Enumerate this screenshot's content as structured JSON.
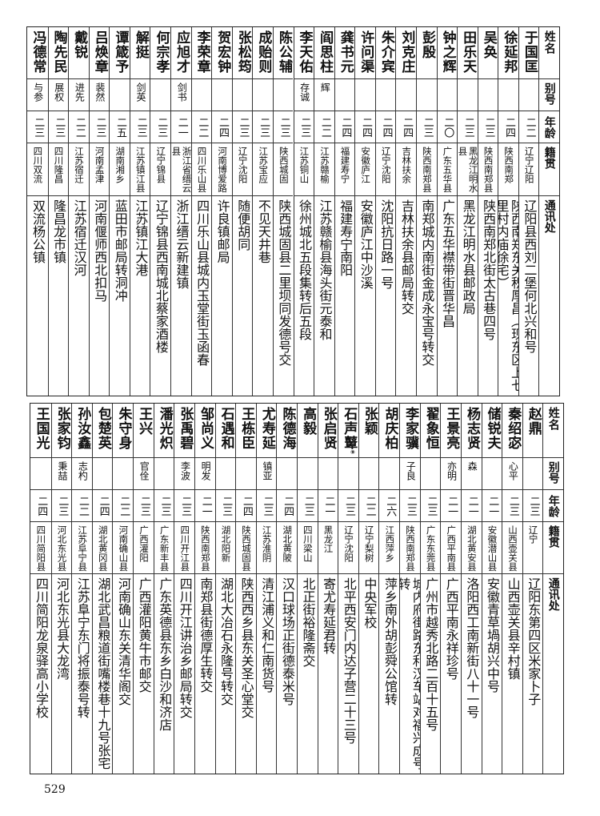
{
  "headers": {
    "name": "姓名",
    "alias": "别号",
    "age": "年龄",
    "origin": "籍贯",
    "address": "通讯处"
  },
  "tables": [
    {
      "rows": [
        {
          "name": "于国匡",
          "alias": "",
          "age": "二二",
          "origin": "辽宁辽阳",
          "address": "辽阳县西刘二堡何北兴和号"
        },
        {
          "name": "徐延邦",
          "alias": "",
          "age": "二四",
          "origin": "陕西南郑",
          "address": "陕西南郑东关积厚昌（现东区上七里村内庙徐宅）"
        },
        {
          "name": "吴奂",
          "alias": "",
          "age": "二三",
          "origin": "陕西南郑县",
          "address": "陕西南郑北街太古巷四号"
        },
        {
          "name": "田乐天",
          "alias": "",
          "age": "二三",
          "origin": "黑龙江明水县",
          "address": "黑龙江明水县邮政局"
        },
        {
          "name": "钟之辉",
          "alias": "",
          "age": "二〇",
          "origin": "广东五华县",
          "address": "广东五华襟带街晋华昌"
        },
        {
          "name": "彭殷",
          "alias": "",
          "age": "二三",
          "origin": "陕西南郑县",
          "address": "南郑城内南街金成永宝号转交"
        },
        {
          "name": "刘克庄",
          "alias": "",
          "age": "二四",
          "origin": "吉林扶余",
          "address": "吉林扶余县邮局转交"
        },
        {
          "name": "朱介宾",
          "alias": "",
          "age": "二四",
          "origin": "辽宁沈阳",
          "address": "沈阳抗日路一号"
        },
        {
          "name": "许问渠",
          "alias": "",
          "age": "二四",
          "origin": "安徽庐江",
          "address": "安徽庐江中沙溪"
        },
        {
          "name": "龚书元",
          "alias": "",
          "age": "二四",
          "origin": "福建寿宁",
          "address": "福建寿宁南阳"
        },
        {
          "name": "阎思柱",
          "alias": "辉",
          "age": "二二",
          "origin": "江苏赣榆",
          "address": "江苏赣榆县海头街元泰和"
        },
        {
          "name": "李天佑",
          "alias": "存诚",
          "age": "二三",
          "origin": "江苏铜山",
          "address": "徐州城北五段集转后五段"
        },
        {
          "name": "陈公辅",
          "alias": "",
          "age": "二三",
          "origin": "陕西城固",
          "address": "陕西城固县二里坝同发德号交"
        },
        {
          "name": "成贻则",
          "alias": "",
          "age": "二三",
          "origin": "江苏宝应",
          "address": "不见天井巷"
        },
        {
          "name": "张松筠",
          "alias": "",
          "age": "二三",
          "origin": "辽宁沈阳",
          "address": "随便胡同"
        },
        {
          "name": "贺宏钟",
          "alias": "",
          "age": "二四",
          "origin": "河南博爱路",
          "address": "许良镇邮局"
        },
        {
          "name": "李荣章",
          "alias": "",
          "age": "二二",
          "origin": "四川乐山县",
          "address": "四川乐山县城内玉堂街玉函春"
        },
        {
          "name": "应旭才",
          "alias": "剑书",
          "age": "二一",
          "origin": "浙江省缙云县",
          "address": "浙江缙云新建镇"
        },
        {
          "name": "何宗孝",
          "alias": "",
          "age": "二三",
          "origin": "辽宁锦县",
          "address": "辽宁锦县西南城北蔡家酒楼"
        },
        {
          "name": "解挺",
          "alias": "剑英",
          "age": "二三",
          "origin": "江苏镇江县",
          "address": "江苏镇江大港"
        },
        {
          "name": "谭箴予",
          "alias": "",
          "age": "二五",
          "origin": "湖南湘乡",
          "address": "蓝田市邮局转洞冲"
        },
        {
          "name": "吕焕章",
          "alias": "裴然",
          "age": "二三",
          "origin": "河南孟津",
          "address": "河南偃师西北扣马"
        },
        {
          "name": "戴锐",
          "alias": "进先",
          "age": "二二",
          "origin": "江苏宿迁",
          "address": "江苏宿迁汉河"
        },
        {
          "name": "陶先民",
          "alias": "展权",
          "age": "二三",
          "origin": "四川隆昌",
          "address": "隆昌龙市镇"
        },
        {
          "name": "冯德常",
          "alias": "与参",
          "age": "二三",
          "origin": "四川双流",
          "address": "双流杨公镇"
        }
      ]
    },
    {
      "rows": [
        {
          "name": "赵鼎",
          "alias": "",
          "age": "二三",
          "origin": "辽宁",
          "address": "辽阳东第四区米家卜子"
        },
        {
          "name": "秦绍宓",
          "alias": "心平",
          "age": "二三",
          "origin": "山西壶关县",
          "address": "山西壶关县辛村镇"
        },
        {
          "name": "储锐夫",
          "alias": "",
          "age": "二一",
          "origin": "安徽潜山县",
          "address": "安徽青草堝胡兴中号"
        },
        {
          "name": "杨志贤",
          "alias": "森",
          "age": "二一",
          "origin": "湖北黄安县",
          "address": "洛阳西工南新街八十一号"
        },
        {
          "name": "王景亮",
          "alias": "亦明",
          "age": "二一",
          "origin": "广西平南县",
          "address": "广西平南永祥珍号"
        },
        {
          "name": "翟象恒",
          "alias": "",
          "age": "二三",
          "origin": "广东东莞县",
          "address": "广州市越秀北路二百十五号"
        },
        {
          "name": "李家骥",
          "alias": "子良",
          "age": "二三",
          "origin": "陕西南郑县",
          "address": "城内府街路东利汉车站对福兴成号转"
        },
        {
          "name": "胡庆柏",
          "alias": "",
          "age": "二六",
          "origin": "江西萍乡",
          "address": "萍乡南外胡彭舜公馆转"
        },
        {
          "name": "张颖",
          "alias": "",
          "age": "二二",
          "origin": "辽宁梨树",
          "address": "中央军校"
        },
        {
          "name": "石声鼙",
          "note": "⑨",
          "alias": "",
          "age": "二三",
          "origin": "辽宁沈阳",
          "address": "北平西安门内达子营二十三号"
        },
        {
          "name": "张启贤",
          "alias": "",
          "age": "二一",
          "origin": "黑龙江",
          "address": "寄尤寿延君转"
        },
        {
          "name": "高毅",
          "alias": "",
          "age": "二三",
          "origin": "四川梁山",
          "address": "北正街裕隆斋交"
        },
        {
          "name": "陈德海",
          "alias": "",
          "age": "二四",
          "origin": "湖北黄陂",
          "address": "汉口球场正街德泰米号"
        },
        {
          "name": "尤寿延",
          "alias": "镇亚",
          "age": "二三",
          "origin": "江苏淮阴",
          "address": "清江浦义和仁南货号"
        },
        {
          "name": "王栋臣",
          "alias": "",
          "age": "二四",
          "origin": "陕西城固县",
          "address": "陕西西乡县东关圣心堂交"
        },
        {
          "name": "石遇和",
          "alias": "",
          "age": "二三",
          "origin": "湖北阳新",
          "address": "湖北大冶石永隆号转交"
        },
        {
          "name": "邹尚义",
          "alias": "明发",
          "age": "二一",
          "origin": "陕西南郑县",
          "address": "南郑县街德厚生转交"
        },
        {
          "name": "张禹碧",
          "alias": "李波",
          "age": "二三",
          "origin": "四川开江县",
          "address": "四川开江讲治乡邮局转交"
        },
        {
          "name": "潘光炽",
          "alias": "",
          "age": "二三",
          "origin": "广东新丰县",
          "address": "广东英德县东乡白沙和济店"
        },
        {
          "name": "王兴",
          "alias": "官佺",
          "age": "二三",
          "origin": "广西灌阳",
          "address": "广西灌阳黄牛市邮交"
        },
        {
          "name": "朱守身",
          "alias": "",
          "age": "二二",
          "origin": "河南确山县",
          "address": "河南确山东关清华阁交"
        },
        {
          "name": "包楚英",
          "alias": "",
          "age": "二四",
          "origin": "湖北黄冈县",
          "address": "湖北武昌粮道街嘴楼巷十九号张宅"
        },
        {
          "name": "孙汝鑫",
          "alias": "志杓",
          "age": "二二",
          "origin": "江苏阜宁县",
          "address": "江苏阜宁东门将振泰号转"
        },
        {
          "name": "张家钧",
          "alias": "秉喆",
          "age": "二三",
          "origin": "河北东光县",
          "address": "河北东光县大龙湾"
        },
        {
          "name": "王国光",
          "alias": "",
          "age": "二四",
          "origin": "四川简阳县",
          "address": "四川简阳龙泉驿高小学校"
        }
      ]
    }
  ],
  "page_number": "529"
}
